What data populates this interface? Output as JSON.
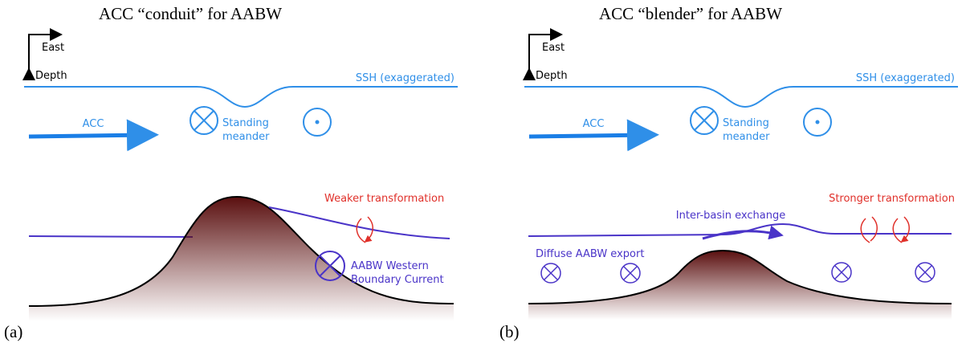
{
  "panels": [
    {
      "title": "ACC “conduit” for AABW",
      "label": "(a)",
      "east": "East",
      "depth": "Depth",
      "ssh": "SSH (exaggerated)",
      "acc": "ACC",
      "meander": [
        "Standing",
        "meander"
      ],
      "transformation": "Weaker transformation",
      "current": [
        "AABW Western",
        "Boundary Current"
      ]
    },
    {
      "title": "ACC “blender” for AABW",
      "label": "(b)",
      "east": "East",
      "depth": "Depth",
      "ssh": "SSH (exaggerated)",
      "acc": "ACC",
      "meander": [
        "Standing",
        "meander"
      ],
      "transformation": "Stronger transformation",
      "exchange": "Inter-basin exchange",
      "export": "Diffuse AABW export"
    }
  ]
}
